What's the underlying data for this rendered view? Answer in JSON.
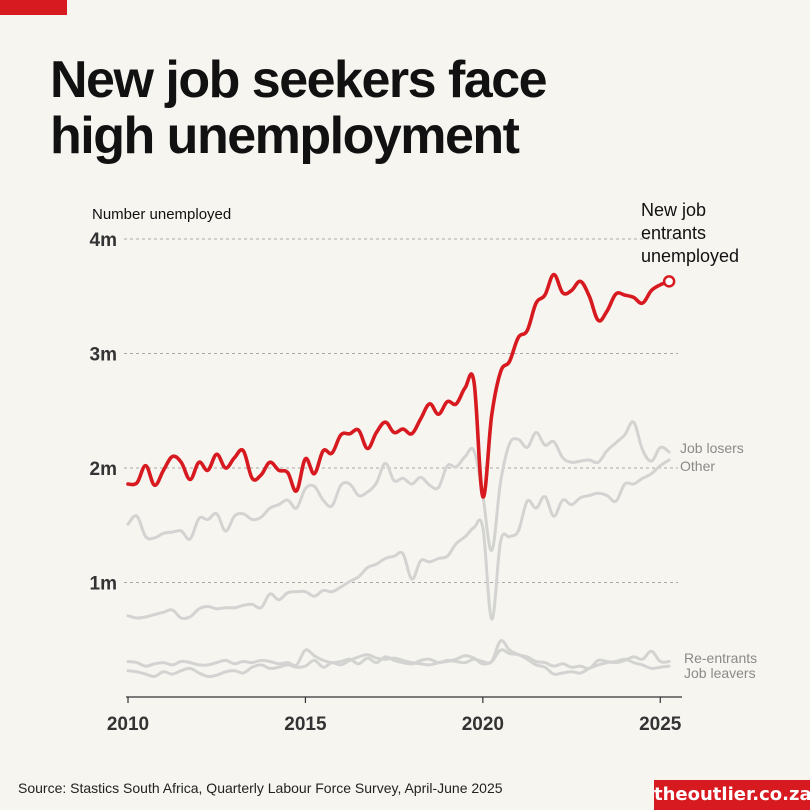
{
  "title": "New job seekers face high unemployment",
  "source": "Source: Stastics South Africa, Quarterly Labour Force Survey, April-June 2025",
  "brand": "theoutlier.co.za",
  "colors": {
    "highlight": "#d71920",
    "other_series": "#d3d3d1",
    "label_grey": "#8a8a8a",
    "text": "#111111"
  },
  "chart_data": {
    "type": "line",
    "ylabel": "Number unemployed",
    "ylim": [
      0,
      4000000
    ],
    "yticks": [
      {
        "value": 1000000,
        "label": "1m"
      },
      {
        "value": 2000000,
        "label": "2m"
      },
      {
        "value": 3000000,
        "label": "3m"
      },
      {
        "value": 4000000,
        "label": "4m"
      }
    ],
    "xlim": [
      2010,
      2025.5
    ],
    "xticks": [
      {
        "value": 2010,
        "label": "2010"
      },
      {
        "value": 2015,
        "label": "2015"
      },
      {
        "value": 2020,
        "label": "2020"
      },
      {
        "value": 2025,
        "label": "2025"
      }
    ],
    "grid": true,
    "x": [
      2010.0,
      2010.25,
      2010.5,
      2010.75,
      2011.0,
      2011.25,
      2011.5,
      2011.75,
      2012.0,
      2012.25,
      2012.5,
      2012.75,
      2013.0,
      2013.25,
      2013.5,
      2013.75,
      2014.0,
      2014.25,
      2014.5,
      2014.75,
      2015.0,
      2015.25,
      2015.5,
      2015.75,
      2016.0,
      2016.25,
      2016.5,
      2016.75,
      2017.0,
      2017.25,
      2017.5,
      2017.75,
      2018.0,
      2018.25,
      2018.5,
      2018.75,
      2019.0,
      2019.25,
      2019.5,
      2019.75,
      2020.0,
      2020.25,
      2020.5,
      2020.75,
      2021.0,
      2021.25,
      2021.5,
      2021.75,
      2022.0,
      2022.25,
      2022.5,
      2022.75,
      2023.0,
      2023.25,
      2023.5,
      2023.75,
      2024.0,
      2024.25,
      2024.5,
      2024.75,
      2025.0,
      2025.25
    ],
    "series": [
      {
        "name": "New job entrants unemployed",
        "label_lines": [
          "New job",
          "entrants",
          "unemployed"
        ],
        "highlight": true,
        "values": [
          1860000,
          1870000,
          2020000,
          1850000,
          1980000,
          2100000,
          2050000,
          1900000,
          2050000,
          1980000,
          2120000,
          2000000,
          2090000,
          2150000,
          1910000,
          1940000,
          2050000,
          1980000,
          1960000,
          1800000,
          2080000,
          1950000,
          2150000,
          2130000,
          2290000,
          2300000,
          2330000,
          2170000,
          2310000,
          2400000,
          2310000,
          2340000,
          2300000,
          2430000,
          2560000,
          2470000,
          2580000,
          2560000,
          2700000,
          2750000,
          1750000,
          2460000,
          2840000,
          2930000,
          3140000,
          3200000,
          3440000,
          3510000,
          3690000,
          3530000,
          3550000,
          3630000,
          3500000,
          3290000,
          3370000,
          3520000,
          3510000,
          3490000,
          3440000,
          3550000,
          3600000,
          3630000
        ]
      },
      {
        "name": "Job losers",
        "label_lines": [
          "Job losers"
        ],
        "values": [
          1510000,
          1580000,
          1400000,
          1390000,
          1430000,
          1440000,
          1450000,
          1380000,
          1560000,
          1550000,
          1600000,
          1450000,
          1580000,
          1600000,
          1550000,
          1570000,
          1650000,
          1680000,
          1720000,
          1650000,
          1820000,
          1840000,
          1720000,
          1670000,
          1850000,
          1860000,
          1760000,
          1790000,
          1870000,
          2040000,
          1890000,
          1910000,
          1860000,
          1920000,
          1850000,
          1830000,
          2020000,
          2010000,
          2100000,
          2150000,
          1760000,
          1280000,
          1880000,
          2210000,
          2250000,
          2180000,
          2310000,
          2200000,
          2230000,
          2090000,
          2050000,
          2060000,
          2070000,
          2050000,
          2150000,
          2220000,
          2290000,
          2400000,
          2160000,
          2060000,
          2180000,
          2140000
        ]
      },
      {
        "name": "Other",
        "label_lines": [
          "Other"
        ],
        "values": [
          710000,
          690000,
          700000,
          720000,
          740000,
          760000,
          690000,
          700000,
          770000,
          790000,
          770000,
          780000,
          780000,
          800000,
          810000,
          780000,
          900000,
          850000,
          910000,
          920000,
          920000,
          880000,
          930000,
          920000,
          960000,
          1010000,
          1050000,
          1130000,
          1160000,
          1210000,
          1230000,
          1250000,
          1030000,
          1190000,
          1180000,
          1210000,
          1230000,
          1340000,
          1400000,
          1480000,
          1480000,
          680000,
          1360000,
          1400000,
          1450000,
          1710000,
          1650000,
          1750000,
          1580000,
          1720000,
          1680000,
          1740000,
          1760000,
          1780000,
          1760000,
          1710000,
          1860000,
          1860000,
          1910000,
          1950000,
          2020000,
          2070000
        ]
      },
      {
        "name": "Re-entrants",
        "label_lines": [
          "Re-entrants"
        ],
        "values": [
          310000,
          300000,
          270000,
          290000,
          300000,
          280000,
          310000,
          300000,
          280000,
          280000,
          300000,
          320000,
          290000,
          310000,
          300000,
          320000,
          310000,
          290000,
          300000,
          280000,
          410000,
          360000,
          320000,
          300000,
          310000,
          330000,
          290000,
          340000,
          300000,
          350000,
          320000,
          300000,
          290000,
          320000,
          330000,
          300000,
          320000,
          310000,
          300000,
          330000,
          310000,
          310000,
          490000,
          410000,
          370000,
          350000,
          310000,
          300000,
          270000,
          290000,
          260000,
          270000,
          250000,
          320000,
          310000,
          300000,
          320000,
          350000,
          330000,
          400000,
          310000,
          310000
        ]
      },
      {
        "name": "Job leavers",
        "label_lines": [
          "Job leavers"
        ],
        "values": [
          230000,
          220000,
          200000,
          180000,
          220000,
          200000,
          230000,
          250000,
          210000,
          180000,
          190000,
          220000,
          230000,
          210000,
          260000,
          280000,
          250000,
          260000,
          280000,
          260000,
          270000,
          320000,
          260000,
          300000,
          280000,
          320000,
          350000,
          370000,
          340000,
          330000,
          340000,
          320000,
          300000,
          290000,
          280000,
          300000,
          310000,
          330000,
          360000,
          340000,
          290000,
          310000,
          410000,
          380000,
          370000,
          330000,
          280000,
          260000,
          200000,
          210000,
          220000,
          210000,
          250000,
          280000,
          300000,
          310000,
          330000,
          300000,
          280000,
          250000,
          260000,
          270000
        ]
      }
    ]
  }
}
